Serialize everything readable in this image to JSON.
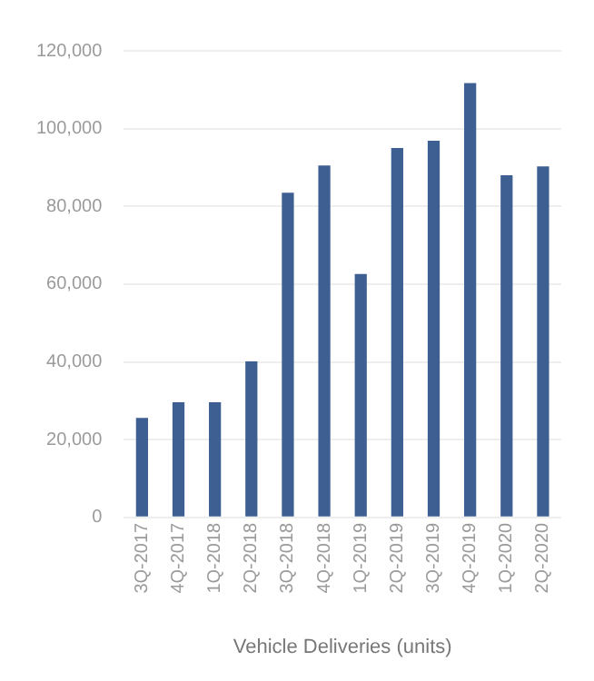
{
  "chart_data": {
    "type": "bar",
    "xlabel": "Vehicle Deliveries (units)",
    "categories": [
      "3Q-2017",
      "4Q-2017",
      "1Q-2018",
      "2Q-2018",
      "3Q-2018",
      "4Q-2018",
      "1Q-2019",
      "2Q-2019",
      "3Q-2019",
      "4Q-2019",
      "1Q-2020",
      "2Q-2020"
    ],
    "values": [
      25600,
      29600,
      29600,
      40100,
      83500,
      90500,
      62600,
      95000,
      96900,
      111700,
      88000,
      90300
    ],
    "color": "#3d5f92",
    "ylim": [
      0,
      120000
    ],
    "yticks": [
      0,
      {
        "value": 20000,
        "label": "20,000"
      },
      {
        "value": 40000,
        "label": "40,000"
      },
      {
        "value": 60000,
        "label": "60,000"
      },
      {
        "value": 80000,
        "label": "80,000"
      },
      {
        "value": 100000,
        "label": "100,000"
      },
      {
        "value": 120000,
        "label": "120,000"
      }
    ],
    "grid": "y",
    "legend": false
  }
}
